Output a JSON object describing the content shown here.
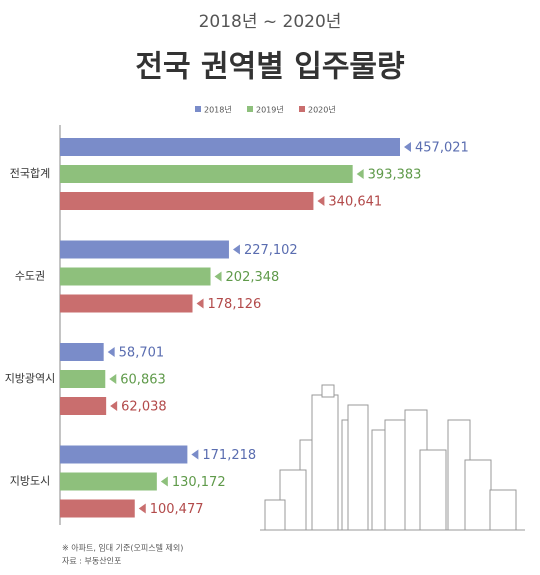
{
  "chart_data": {
    "type": "bar",
    "orientation": "horizontal",
    "subtitle": "2018년 ~ 2020년",
    "title": "전국 권역별 입주물량",
    "categories": [
      "전국합계",
      "수도권",
      "지방광역시",
      "지방도시"
    ],
    "series": [
      {
        "name": "2018년",
        "color": "#7a8cc9",
        "values": [
          457021,
          227102,
          58701,
          171218
        ],
        "value_labels": [
          "457,021",
          "227,102",
          "58,701",
          "171,218"
        ]
      },
      {
        "name": "2019년",
        "color": "#8ec07c",
        "values": [
          393383,
          202348,
          60863,
          130172
        ],
        "value_labels": [
          "393,383",
          "202,348",
          "60,863",
          "130,172"
        ]
      },
      {
        "name": "2020년",
        "color": "#c96e6e",
        "values": [
          340641,
          178126,
          62038,
          100477
        ],
        "value_labels": [
          "340,641",
          "178,126",
          "62,038",
          "100,477"
        ]
      }
    ],
    "legend": "top",
    "notes": [
      "※ 아파트, 임대 기준(오피스텔 제외)",
      "자료 : 부동산인포"
    ]
  }
}
